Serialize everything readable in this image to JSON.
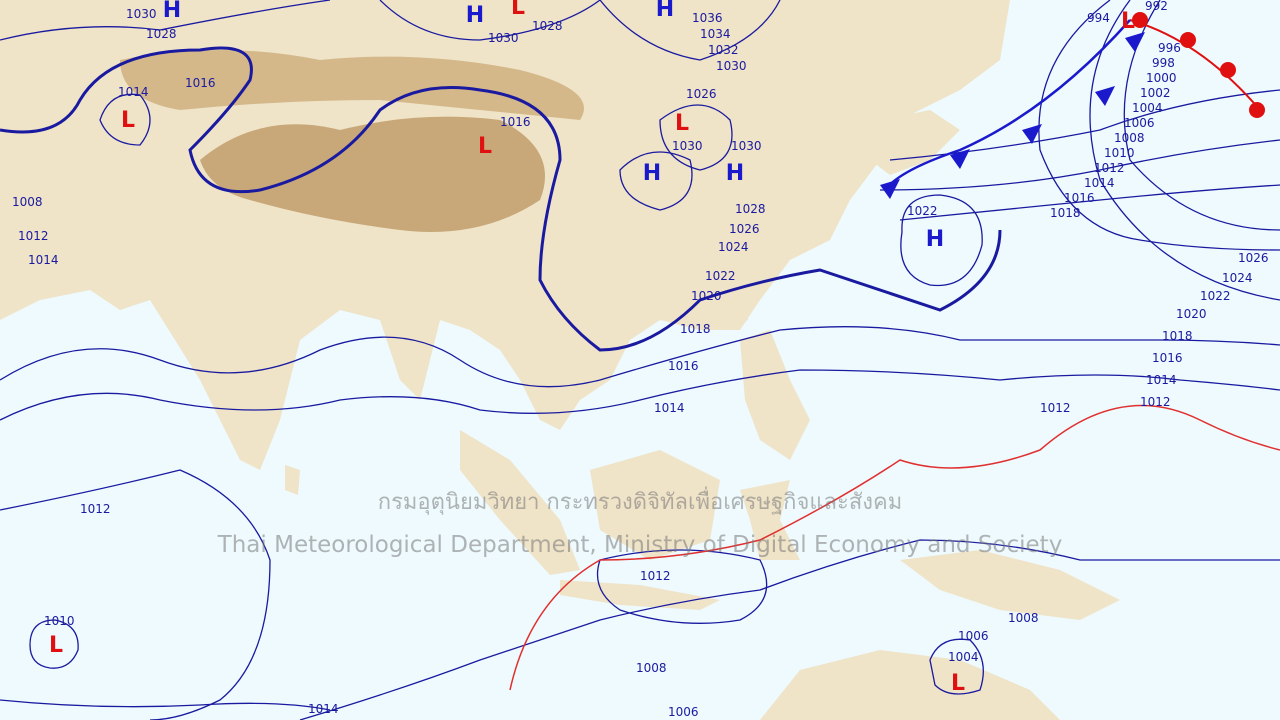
{
  "map": {
    "colors": {
      "sea": "#eefafd",
      "land": "#efe3c8",
      "highland": "#c8a878",
      "isobar": "#1a1aa0",
      "front_warm": "#e01010",
      "front_cold": "#1a1acc",
      "trough": "#e03030"
    },
    "pressure_centers": [
      {
        "type": "H",
        "label": "H"
      },
      {
        "type": "H",
        "label": "H"
      },
      {
        "type": "H",
        "label": "H"
      },
      {
        "type": "H",
        "label": "H"
      },
      {
        "type": "H",
        "label": "H"
      },
      {
        "type": "H",
        "label": "H"
      },
      {
        "type": "L",
        "label": "L"
      },
      {
        "type": "L",
        "label": "L"
      },
      {
        "type": "L",
        "label": "L"
      },
      {
        "type": "L",
        "label": "L"
      },
      {
        "type": "L",
        "label": "L"
      },
      {
        "type": "L",
        "label": "L"
      },
      {
        "type": "L",
        "label": "L"
      }
    ],
    "isobar_labels": [
      "1030",
      "1028",
      "1014",
      "1016",
      "1008",
      "1012",
      "1014",
      "1030",
      "1028",
      "1036",
      "1034",
      "1032",
      "1030",
      "1026",
      "1016",
      "1030",
      "1030",
      "1028",
      "1026",
      "1024",
      "1022",
      "1020",
      "1018",
      "1016",
      "1014",
      "1012",
      "1012",
      "1010",
      "1014",
      "1008",
      "1006",
      "1004",
      "1006",
      "1008",
      "1022",
      "994",
      "992",
      "996",
      "998",
      "1000",
      "1002",
      "1004",
      "1006",
      "1008",
      "1010",
      "1012",
      "1014",
      "1016",
      "1018",
      "1026",
      "1024",
      "1022",
      "1020",
      "1018",
      "1016",
      "1014",
      "1012",
      "1012"
    ]
  },
  "watermark": {
    "line1": "กรมอุตุนิยมวิทยา กระทรวงดิจิทัลเพื่อเศรษฐกิจและสังคม",
    "line2": "Thai Meteorological Department, Ministry of Digital Economy and Society"
  }
}
